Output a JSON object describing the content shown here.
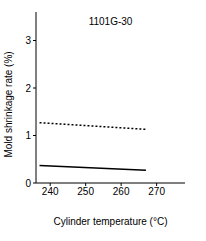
{
  "chart_data": {
    "type": "line",
    "title": "1101G-30",
    "x_label": "Cylinder temperature (°C)",
    "y_label": "Mold shrinkage rate (%)",
    "x": [
      237,
      267
    ],
    "series": [
      {
        "color": "#000000",
        "line_style": "dotted",
        "values": [
          1.27,
          1.13
        ]
      },
      {
        "color": "#000000",
        "line_style": "solid",
        "values": [
          0.37,
          0.27
        ]
      }
    ],
    "xlim": [
      236,
      278
    ],
    "ylim": [
      0,
      3.6
    ],
    "xticks": [
      240,
      250,
      260,
      270
    ],
    "yticks": [
      0,
      1,
      2,
      3
    ],
    "grid": false
  }
}
